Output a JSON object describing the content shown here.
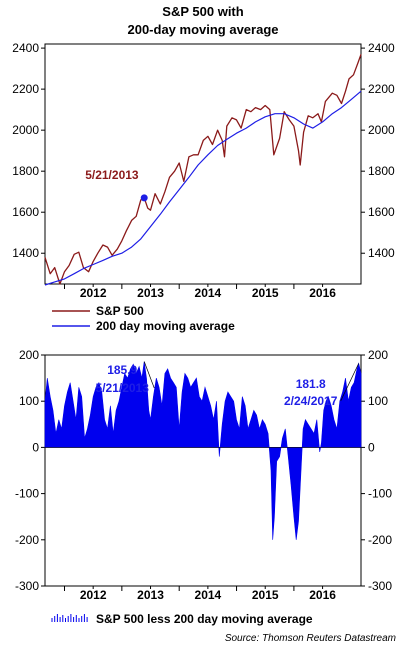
{
  "title_line1": "S&P 500 with",
  "title_line2": "200-day moving average",
  "colors": {
    "sp500": "#8B1A1A",
    "ma200": "#1E1EE6",
    "diff": "#0000EE",
    "anno_price": "#8B1A1A",
    "anno_diff": "#1E1EE6"
  },
  "legend_top": {
    "sp500_label": "S&P 500",
    "ma_label": "200 day moving average"
  },
  "legend_bottom": {
    "diff_label": "S&P 500 less 200 day moving average"
  },
  "source": "Source: Thomson Reuters Datastream",
  "chart_data": [
    {
      "type": "line",
      "ylim": [
        1250,
        2420
      ],
      "yticks_left": [
        1400,
        1600,
        1800,
        2000,
        2200,
        2400
      ],
      "yticks_left_labels": [
        "1400",
        "1600",
        "1800",
        "2000",
        "2200",
        "2400"
      ],
      "yticks_right": [
        1400,
        1600,
        1800,
        2000,
        2200,
        2400
      ],
      "yticks_right_labels": [
        "1400",
        "1600",
        "1800",
        "2000",
        "2200",
        "2400"
      ],
      "xlim": [
        2011.66,
        2017.17
      ],
      "xticks": [
        2012,
        2013,
        2014,
        2015,
        2016
      ],
      "xtick_labels": [
        "2012",
        "2013",
        "2014",
        "2015",
        "2016"
      ],
      "series": [
        {
          "name": "S&P 500",
          "x": [
            2011.66,
            2011.75,
            2011.83,
            2011.92,
            2012.0,
            2012.08,
            2012.17,
            2012.25,
            2012.33,
            2012.42,
            2012.5,
            2012.58,
            2012.67,
            2012.75,
            2012.83,
            2012.92,
            2013.0,
            2013.08,
            2013.17,
            2013.25,
            2013.33,
            2013.39,
            2013.45,
            2013.5,
            2013.58,
            2013.67,
            2013.75,
            2013.83,
            2013.92,
            2014.0,
            2014.08,
            2014.17,
            2014.25,
            2014.33,
            2014.42,
            2014.5,
            2014.58,
            2014.67,
            2014.75,
            2014.79,
            2014.83,
            2014.92,
            2015.0,
            2015.08,
            2015.17,
            2015.25,
            2015.33,
            2015.42,
            2015.5,
            2015.58,
            2015.65,
            2015.75,
            2015.83,
            2015.92,
            2016.0,
            2016.08,
            2016.11,
            2016.17,
            2016.25,
            2016.33,
            2016.42,
            2016.48,
            2016.55,
            2016.67,
            2016.75,
            2016.83,
            2016.9,
            2016.96,
            2017.04,
            2017.12,
            2017.17
          ],
          "values": [
            1380,
            1300,
            1330,
            1250,
            1310,
            1340,
            1395,
            1405,
            1330,
            1310,
            1360,
            1400,
            1440,
            1430,
            1390,
            1420,
            1460,
            1510,
            1560,
            1580,
            1660,
            1670,
            1620,
            1610,
            1690,
            1640,
            1700,
            1770,
            1800,
            1840,
            1750,
            1870,
            1880,
            1880,
            1950,
            1970,
            1930,
            2000,
            1950,
            1870,
            2020,
            2060,
            2050,
            2010,
            2100,
            2090,
            2110,
            2100,
            2120,
            2100,
            1880,
            1960,
            2090,
            2050,
            2020,
            1900,
            1830,
            1990,
            2070,
            2060,
            2080,
            2040,
            2140,
            2180,
            2170,
            2130,
            2190,
            2250,
            2270,
            2330,
            2370
          ]
        },
        {
          "name": "200 day moving average",
          "x": [
            2011.66,
            2011.83,
            2012.0,
            2012.17,
            2012.33,
            2012.5,
            2012.67,
            2012.83,
            2013.0,
            2013.17,
            2013.33,
            2013.5,
            2013.67,
            2013.83,
            2014.0,
            2014.17,
            2014.33,
            2014.5,
            2014.67,
            2014.83,
            2015.0,
            2015.17,
            2015.33,
            2015.5,
            2015.67,
            2015.83,
            2016.0,
            2016.17,
            2016.33,
            2016.5,
            2016.67,
            2016.83,
            2017.0,
            2017.17
          ],
          "values": [
            1245,
            1260,
            1275,
            1300,
            1325,
            1345,
            1365,
            1385,
            1400,
            1430,
            1470,
            1530,
            1590,
            1650,
            1710,
            1770,
            1830,
            1880,
            1925,
            1955,
            1985,
            2010,
            2040,
            2065,
            2080,
            2080,
            2060,
            2030,
            2010,
            2040,
            2080,
            2110,
            2150,
            2190
          ]
        }
      ],
      "annotation": {
        "label": "5/21/2013",
        "x": 2013.39,
        "y": 1670
      }
    },
    {
      "type": "area",
      "ylim": [
        -300,
        200
      ],
      "yticks_left": [
        -300,
        -200,
        -100,
        0,
        100,
        200
      ],
      "yticks_left_labels": [
        "-300",
        "-200",
        "-100",
        "0",
        "100",
        "200"
      ],
      "yticks_right": [
        -300,
        -200,
        -100,
        0,
        100,
        200
      ],
      "yticks_right_labels": [
        "-300",
        "-200",
        "-100",
        "0",
        "100",
        "200"
      ],
      "xlim": [
        2011.66,
        2017.17
      ],
      "xticks": [
        2012,
        2013,
        2014,
        2015,
        2016
      ],
      "xtick_labels": [
        "2012",
        "2013",
        "2014",
        "2015",
        "2016"
      ],
      "series": [
        {
          "name": "S&P 500 less 200 day moving average",
          "x": [
            2011.66,
            2011.7,
            2011.75,
            2011.8,
            2011.85,
            2011.9,
            2011.95,
            2012.0,
            2012.05,
            2012.1,
            2012.15,
            2012.2,
            2012.25,
            2012.3,
            2012.35,
            2012.4,
            2012.45,
            2012.5,
            2012.55,
            2012.6,
            2012.65,
            2012.7,
            2012.75,
            2012.8,
            2012.85,
            2012.9,
            2012.95,
            2013.0,
            2013.05,
            2013.1,
            2013.15,
            2013.2,
            2013.25,
            2013.3,
            2013.35,
            2013.39,
            2013.43,
            2013.47,
            2013.5,
            2013.55,
            2013.6,
            2013.65,
            2013.7,
            2013.75,
            2013.8,
            2013.85,
            2013.9,
            2013.95,
            2014.0,
            2014.05,
            2014.1,
            2014.15,
            2014.2,
            2014.25,
            2014.3,
            2014.35,
            2014.4,
            2014.45,
            2014.5,
            2014.55,
            2014.6,
            2014.65,
            2014.7,
            2014.75,
            2014.8,
            2014.85,
            2014.9,
            2014.95,
            2015.0,
            2015.05,
            2015.1,
            2015.15,
            2015.2,
            2015.25,
            2015.3,
            2015.35,
            2015.4,
            2015.45,
            2015.5,
            2015.55,
            2015.6,
            2015.63,
            2015.66,
            2015.7,
            2015.75,
            2015.8,
            2015.85,
            2015.9,
            2015.95,
            2016.0,
            2016.04,
            2016.08,
            2016.12,
            2016.16,
            2016.2,
            2016.25,
            2016.3,
            2016.35,
            2016.4,
            2016.45,
            2016.48,
            2016.52,
            2016.56,
            2016.6,
            2016.65,
            2016.7,
            2016.75,
            2016.8,
            2016.85,
            2016.9,
            2016.95,
            2017.0,
            2017.05,
            2017.1,
            2017.13,
            2017.17
          ],
          "values": [
            100,
            150,
            110,
            80,
            30,
            60,
            40,
            90,
            120,
            140,
            100,
            60,
            130,
            110,
            20,
            40,
            70,
            110,
            130,
            140,
            120,
            60,
            40,
            90,
            30,
            80,
            100,
            130,
            160,
            150,
            170,
            180,
            160,
            175,
            150,
            185.9,
            150,
            80,
            60,
            110,
            150,
            130,
            90,
            160,
            170,
            150,
            140,
            130,
            40,
            120,
            160,
            150,
            130,
            140,
            150,
            110,
            100,
            130,
            110,
            90,
            60,
            100,
            -20,
            50,
            100,
            120,
            110,
            100,
            60,
            40,
            110,
            90,
            40,
            60,
            80,
            70,
            40,
            60,
            50,
            30,
            -50,
            -200,
            -150,
            -30,
            -20,
            20,
            40,
            -20,
            -80,
            -150,
            -200,
            -160,
            -60,
            40,
            60,
            50,
            40,
            30,
            60,
            -10,
            10,
            80,
            100,
            110,
            90,
            60,
            40,
            100,
            120,
            150,
            100,
            130,
            140,
            170,
            181.8,
            160
          ]
        }
      ],
      "annotations": [
        {
          "value_label": "185.9",
          "date_label": "5/21/2013",
          "x": 2013.39,
          "y": 185.9
        },
        {
          "value_label": "181.8",
          "date_label": "2/24/2017",
          "x": 2017.13,
          "y": 181.8
        }
      ]
    }
  ]
}
